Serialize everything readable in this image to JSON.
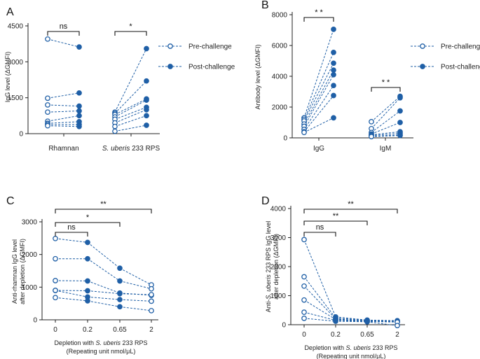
{
  "colors": {
    "series": "#1f5fa6",
    "axis": "#222222"
  },
  "chart_data": [
    {
      "panel": "A",
      "type": "scatter",
      "ylabel": "IgG level (ΔGMFI)",
      "ylim": [
        0,
        4500
      ],
      "yticks": [
        "0",
        "1500",
        "3000",
        "4500"
      ],
      "categories": [
        "Rhamnan",
        "S. uberis 233 RPS"
      ],
      "category_labels": [
        {
          "parts": [
            {
              "t": "Rhamnan",
              "italic": false
            }
          ]
        },
        {
          "parts": [
            {
              "t": "S. uberis",
              "italic": true
            },
            {
              "t": " 233 RPS",
              "italic": false
            }
          ]
        }
      ],
      "legend": [
        "Pre-challenge",
        "Post-challenge"
      ],
      "pairs": [
        {
          "category": "Rhamnan",
          "pre": [
            3950,
            1480,
            1200,
            900,
            520,
            430,
            380,
            330
          ],
          "post": [
            3620,
            1700,
            1150,
            950,
            750,
            500,
            380,
            300
          ]
        },
        {
          "category": "S. uberis 233 RPS",
          "pre": [
            900,
            850,
            800,
            700,
            600,
            450,
            300,
            100
          ],
          "post": [
            3550,
            2200,
            1450,
            1400,
            1100,
            1000,
            750,
            350
          ]
        }
      ],
      "brackets": [
        {
          "from": 0,
          "to": 0,
          "label": "ns"
        },
        {
          "from": 1,
          "to": 1,
          "label": "*"
        }
      ]
    },
    {
      "panel": "B",
      "type": "scatter",
      "ylabel": "Antibody level (ΔGMFI)",
      "ylim": [
        0,
        8000
      ],
      "yticks": [
        "0",
        "2000",
        "4000",
        "6000",
        "8000"
      ],
      "categories": [
        "IgG",
        "IgM"
      ],
      "legend": [
        "Pre-challenge",
        "Post-challenge"
      ],
      "pairs": [
        {
          "category": "IgG",
          "pre": [
            1300,
            1200,
            1100,
            900,
            750,
            550,
            400,
            350
          ],
          "post": [
            7050,
            5550,
            4850,
            4400,
            4100,
            3400,
            2750,
            1300
          ]
        },
        {
          "category": "IgM",
          "pre": [
            1050,
            600,
            350,
            250,
            200,
            150,
            100,
            80
          ],
          "post": [
            2700,
            2600,
            1750,
            1000,
            400,
            300,
            200,
            150
          ]
        }
      ],
      "brackets": [
        {
          "from": 0,
          "to": 0,
          "label": "* *"
        },
        {
          "from": 1,
          "to": 1,
          "label": "* *"
        }
      ]
    },
    {
      "panel": "C",
      "type": "line",
      "ylabel_lines": [
        "Anti-rhamnan IgG level",
        "after depletion (ΔGMFI)"
      ],
      "ylim": [
        0,
        3000
      ],
      "yticks": [
        "0",
        "1000",
        "2000",
        "3000"
      ],
      "x": [
        "0",
        "0.2",
        "0.65",
        "2"
      ],
      "xlabel_lines": [
        [
          {
            "t": "Depletion with ",
            "italic": false
          },
          {
            "t": "S. uberis",
            "italic": true
          },
          {
            "t": " 233 RPS",
            "italic": false
          }
        ],
        [
          {
            "t": "(Repeating unit nmol/μL)",
            "italic": false
          }
        ]
      ],
      "series": [
        {
          "name": "s1",
          "values": [
            2490,
            2370,
            1580,
            1070
          ]
        },
        {
          "name": "s2",
          "values": [
            1870,
            1870,
            1190,
            950
          ]
        },
        {
          "name": "s3",
          "values": [
            1200,
            1190,
            820,
            750
          ]
        },
        {
          "name": "s4",
          "values": [
            900,
            890,
            800,
            770
          ]
        },
        {
          "name": "s5",
          "values": [
            900,
            700,
            620,
            570
          ]
        },
        {
          "name": "s6",
          "values": [
            680,
            580,
            400,
            280
          ]
        }
      ],
      "brackets": [
        {
          "from": 0,
          "to": 1,
          "label": "ns"
        },
        {
          "from": 0,
          "to": 2,
          "label": "*"
        },
        {
          "from": 0,
          "to": 3,
          "label": "**"
        }
      ]
    },
    {
      "panel": "D",
      "type": "line",
      "ylabel_lines": [
        [
          {
            "t": "Anti-",
            "italic": false
          },
          {
            "t": "S. uberis",
            "italic": true
          },
          {
            "t": " 233 RPS IgG level",
            "italic": false
          }
        ],
        [
          {
            "t": "after depletion (ΔGMFI)",
            "italic": false
          }
        ]
      ],
      "ylim": [
        0,
        4000
      ],
      "yticks": [
        "0",
        "1000",
        "2000",
        "3000",
        "4000"
      ],
      "x": [
        "0",
        "0.2",
        "0.65",
        "2"
      ],
      "xlabel_lines": [
        [
          {
            "t": "Depletion with ",
            "italic": false
          },
          {
            "t": "S. uberis",
            "italic": true
          },
          {
            "t": " 233 RPS",
            "italic": false
          }
        ],
        [
          {
            "t": "(Repeating unit nmol/μL)",
            "italic": false
          }
        ]
      ],
      "series": [
        {
          "name": "s1",
          "values": [
            2930,
            270,
            160,
            140
          ]
        },
        {
          "name": "s2",
          "values": [
            1650,
            230,
            150,
            120
          ]
        },
        {
          "name": "s3",
          "values": [
            1330,
            200,
            130,
            110
          ]
        },
        {
          "name": "s4",
          "values": [
            850,
            180,
            120,
            100
          ]
        },
        {
          "name": "s5",
          "values": [
            430,
            150,
            110,
            90
          ]
        },
        {
          "name": "s6",
          "values": [
            220,
            120,
            100,
            -30
          ]
        }
      ],
      "brackets": [
        {
          "from": 0,
          "to": 1,
          "label": "ns"
        },
        {
          "from": 0,
          "to": 2,
          "label": "**"
        },
        {
          "from": 0,
          "to": 3,
          "label": "**"
        }
      ]
    }
  ]
}
